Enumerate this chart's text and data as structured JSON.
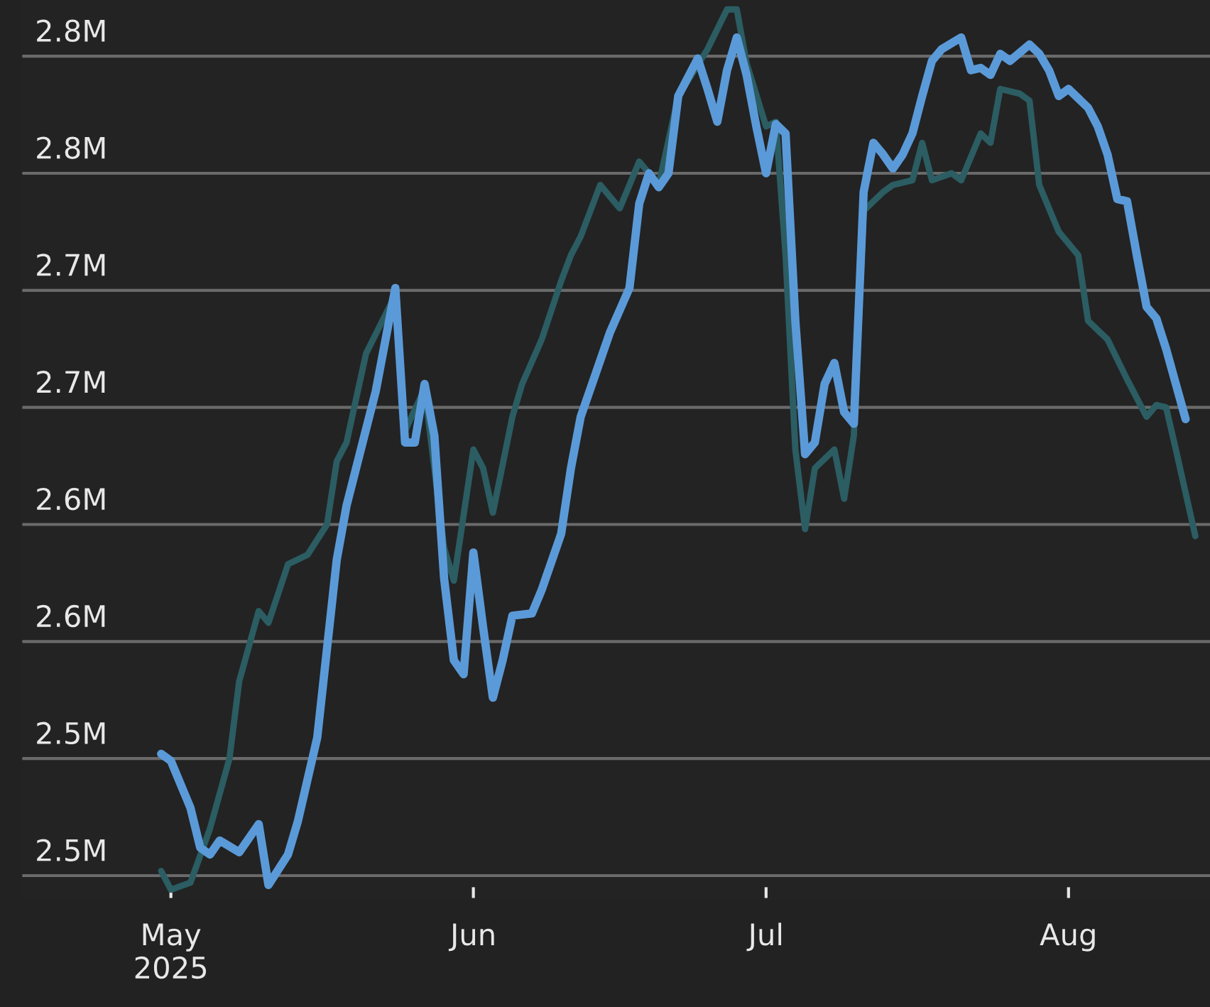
{
  "chart_data": {
    "type": "line",
    "xlim": [
      "2025-04-15T16:00",
      "2025-08-15T12:00"
    ],
    "xticks": [
      {
        "value": "2025-05-01",
        "label": "May\n2025"
      },
      {
        "value": "2025-06-01",
        "label": "Jun"
      },
      {
        "value": "2025-07-01",
        "label": "Jul"
      },
      {
        "value": "2025-08-01",
        "label": "Aug"
      }
    ],
    "ylim": [
      2.49,
      2.874
    ],
    "yticks": [
      {
        "value": 2.5,
        "label": "2.5M"
      },
      {
        "value": 2.55,
        "label": "2.5M"
      },
      {
        "value": 2.6,
        "label": "2.6M"
      },
      {
        "value": 2.65,
        "label": "2.6M"
      },
      {
        "value": 2.7,
        "label": "2.7M"
      },
      {
        "value": 2.75,
        "label": "2.7M"
      },
      {
        "value": 2.8,
        "label": "2.8M"
      },
      {
        "value": 2.85,
        "label": "2.8M"
      }
    ],
    "grid": "y",
    "series": [
      {
        "color": "#2b5d63",
        "x": [
          "2025-04-30",
          "2025-05-01",
          "2025-05-03",
          "2025-05-05",
          "2025-05-07",
          "2025-05-08",
          "2025-05-10",
          "2025-05-11",
          "2025-05-13",
          "2025-05-15",
          "2025-05-17",
          "2025-05-18",
          "2025-05-19",
          "2025-05-21",
          "2025-05-24",
          "2025-05-25",
          "2025-05-27",
          "2025-05-29",
          "2025-05-30",
          "2025-06-01",
          "2025-06-02",
          "2025-06-03",
          "2025-06-05",
          "2025-06-06",
          "2025-06-08",
          "2025-06-10",
          "2025-06-11",
          "2025-06-12",
          "2025-06-14",
          "2025-06-16",
          "2025-06-18",
          "2025-06-20",
          "2025-06-22",
          "2025-06-25",
          "2025-06-27",
          "2025-06-28",
          "2025-06-29",
          "2025-07-01",
          "2025-07-02",
          "2025-07-03",
          "2025-07-04",
          "2025-07-05",
          "2025-07-06",
          "2025-07-08",
          "2025-07-09",
          "2025-07-10",
          "2025-07-11",
          "2025-07-13",
          "2025-07-14",
          "2025-07-16",
          "2025-07-17",
          "2025-07-18",
          "2025-07-20",
          "2025-07-21",
          "2025-07-23",
          "2025-07-24",
          "2025-07-25",
          "2025-07-27",
          "2025-07-28",
          "2025-07-29",
          "2025-07-31",
          "2025-08-02",
          "2025-08-03",
          "2025-08-05",
          "2025-08-07",
          "2025-08-09",
          "2025-08-10",
          "2025-08-11",
          "2025-08-12",
          "2025-08-14"
        ],
        "values": [
          2.502,
          2.494,
          2.497,
          2.52,
          2.55,
          2.583,
          2.613,
          2.608,
          2.633,
          2.637,
          2.65,
          2.677,
          2.685,
          2.723,
          2.748,
          2.69,
          2.708,
          2.64,
          2.626,
          2.682,
          2.674,
          2.655,
          2.696,
          2.71,
          2.729,
          2.754,
          2.765,
          2.773,
          2.795,
          2.785,
          2.805,
          2.795,
          2.833,
          2.853,
          2.87,
          2.87,
          2.847,
          2.82,
          2.822,
          2.765,
          2.682,
          2.648,
          2.674,
          2.682,
          2.661,
          2.688,
          2.784,
          2.792,
          2.795,
          2.797,
          2.813,
          2.797,
          2.8,
          2.797,
          2.817,
          2.813,
          2.836,
          2.834,
          2.831,
          2.795,
          2.775,
          2.765,
          2.737,
          2.729,
          2.712,
          2.696,
          2.701,
          2.7,
          2.682,
          2.645
        ]
      },
      {
        "color": "#5b9ad8",
        "x": [
          "2025-04-30",
          "2025-05-01",
          "2025-05-03",
          "2025-05-04",
          "2025-05-05",
          "2025-05-06",
          "2025-05-08",
          "2025-05-10",
          "2025-05-11",
          "2025-05-13",
          "2025-05-14",
          "2025-05-16",
          "2025-05-18",
          "2025-05-19",
          "2025-05-22",
          "2025-05-24",
          "2025-05-25",
          "2025-05-26",
          "2025-05-27",
          "2025-05-28",
          "2025-05-29",
          "2025-05-30",
          "2025-05-31",
          "2025-06-01",
          "2025-06-02",
          "2025-06-03",
          "2025-06-04",
          "2025-06-05",
          "2025-06-07",
          "2025-06-08",
          "2025-06-10",
          "2025-06-11",
          "2025-06-12",
          "2025-06-14",
          "2025-06-15",
          "2025-06-17",
          "2025-06-18",
          "2025-06-19",
          "2025-06-20",
          "2025-06-21",
          "2025-06-22",
          "2025-06-24",
          "2025-06-25",
          "2025-06-26",
          "2025-06-27",
          "2025-06-28",
          "2025-06-29",
          "2025-06-30",
          "2025-07-01",
          "2025-07-02",
          "2025-07-03",
          "2025-07-04",
          "2025-07-05",
          "2025-07-06",
          "2025-07-07",
          "2025-07-08",
          "2025-07-09",
          "2025-07-10",
          "2025-07-11",
          "2025-07-12",
          "2025-07-13",
          "2025-07-14",
          "2025-07-15",
          "2025-07-16",
          "2025-07-17",
          "2025-07-18",
          "2025-07-19",
          "2025-07-21",
          "2025-07-22",
          "2025-07-23",
          "2025-07-24",
          "2025-07-25",
          "2025-07-26",
          "2025-07-28",
          "2025-07-29",
          "2025-07-30",
          "2025-07-31",
          "2025-08-01",
          "2025-08-03",
          "2025-08-04",
          "2025-08-05",
          "2025-08-06",
          "2025-08-07",
          "2025-08-08",
          "2025-08-09",
          "2025-08-10",
          "2025-08-11",
          "2025-08-12",
          "2025-08-13"
        ],
        "values": [
          2.552,
          2.549,
          2.529,
          2.512,
          2.509,
          2.515,
          2.51,
          2.522,
          2.496,
          2.509,
          2.523,
          2.559,
          2.635,
          2.658,
          2.707,
          2.751,
          2.685,
          2.685,
          2.71,
          2.688,
          2.627,
          2.592,
          2.586,
          2.638,
          2.606,
          2.576,
          2.592,
          2.611,
          2.612,
          2.622,
          2.646,
          2.674,
          2.696,
          2.72,
          2.732,
          2.751,
          2.787,
          2.8,
          2.794,
          2.8,
          2.833,
          2.849,
          2.836,
          2.822,
          2.844,
          2.858,
          2.842,
          2.82,
          2.8,
          2.821,
          2.817,
          2.737,
          2.68,
          2.685,
          2.71,
          2.719,
          2.698,
          2.693,
          2.792,
          2.813,
          2.808,
          2.802,
          2.808,
          2.817,
          2.833,
          2.848,
          2.853,
          2.858,
          2.844,
          2.845,
          2.842,
          2.851,
          2.848,
          2.855,
          2.851,
          2.844,
          2.833,
          2.836,
          2.828,
          2.82,
          2.808,
          2.789,
          2.788,
          2.765,
          2.743,
          2.738,
          2.725,
          2.71,
          2.695
        ]
      }
    ]
  }
}
